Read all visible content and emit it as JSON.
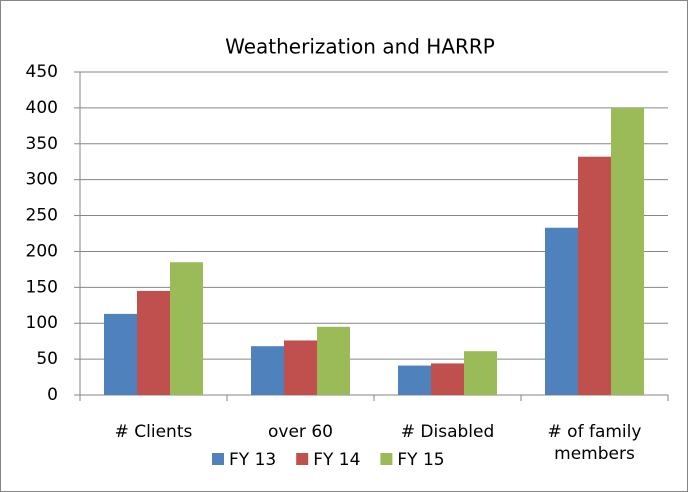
{
  "chart_data": {
    "type": "bar",
    "title": "Weatherization and HARRP",
    "categories": [
      "# Clients",
      "over 60",
      "# Disabled",
      "# of family members"
    ],
    "series": [
      {
        "name": "FY 13",
        "color": "#4f81bd",
        "values": [
          113,
          68,
          41,
          233
        ]
      },
      {
        "name": "FY 14",
        "color": "#c0504d",
        "values": [
          145,
          76,
          44,
          332
        ]
      },
      {
        "name": "FY 15",
        "color": "#9bbb59",
        "values": [
          185,
          95,
          61,
          400
        ]
      }
    ],
    "ylim": [
      0,
      450
    ],
    "yticks": [
      0,
      50,
      100,
      150,
      200,
      250,
      300,
      350,
      400,
      450
    ],
    "grid": true,
    "legend": "bottom"
  }
}
